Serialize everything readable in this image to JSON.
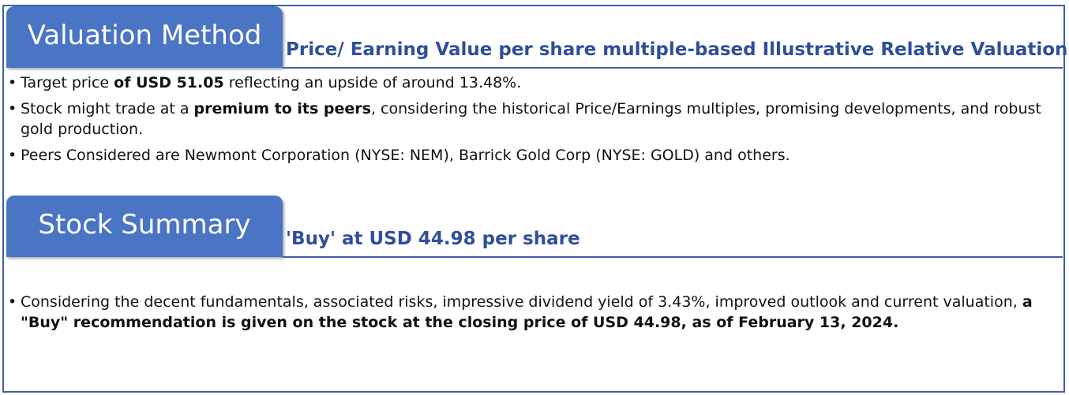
{
  "valuation": {
    "tab_label": "Valuation Method",
    "subtitle": "Price/ Earning Value per share multiple-based Illustrative Relative Valuation",
    "bullets": [
      {
        "pre": "Target price ",
        "bold": "of USD 51.05",
        "post": " reflecting an upside of around 13.48%."
      },
      {
        "pre": "Stock might trade at a ",
        "bold": "premium to its peers",
        "post": ", considering the historical Price/Earnings multiples, promising developments, and robust gold production."
      },
      {
        "pre": "Peers Considered are Newmont Corporation (NYSE: NEM), Barrick Gold Corp (NYSE: GOLD) and others.",
        "bold": "",
        "post": ""
      }
    ]
  },
  "stock_summary": {
    "tab_label": "Stock Summary",
    "subtitle": "'Buy' at USD 44.98 per share",
    "bullets": [
      {
        "pre": "Considering the decent fundamentals, associated risks, impressive dividend yield of 3.43%, improved outlook and current valuation, ",
        "bold": "a \"Buy\" recommendation is given on the stock at the closing price of USD 44.98, as of February 13, 2024.",
        "post": ""
      }
    ]
  },
  "colors": {
    "tab_bg": "#4a74c4",
    "accent": "#2f4f9a",
    "border": "#3f5ea8"
  }
}
